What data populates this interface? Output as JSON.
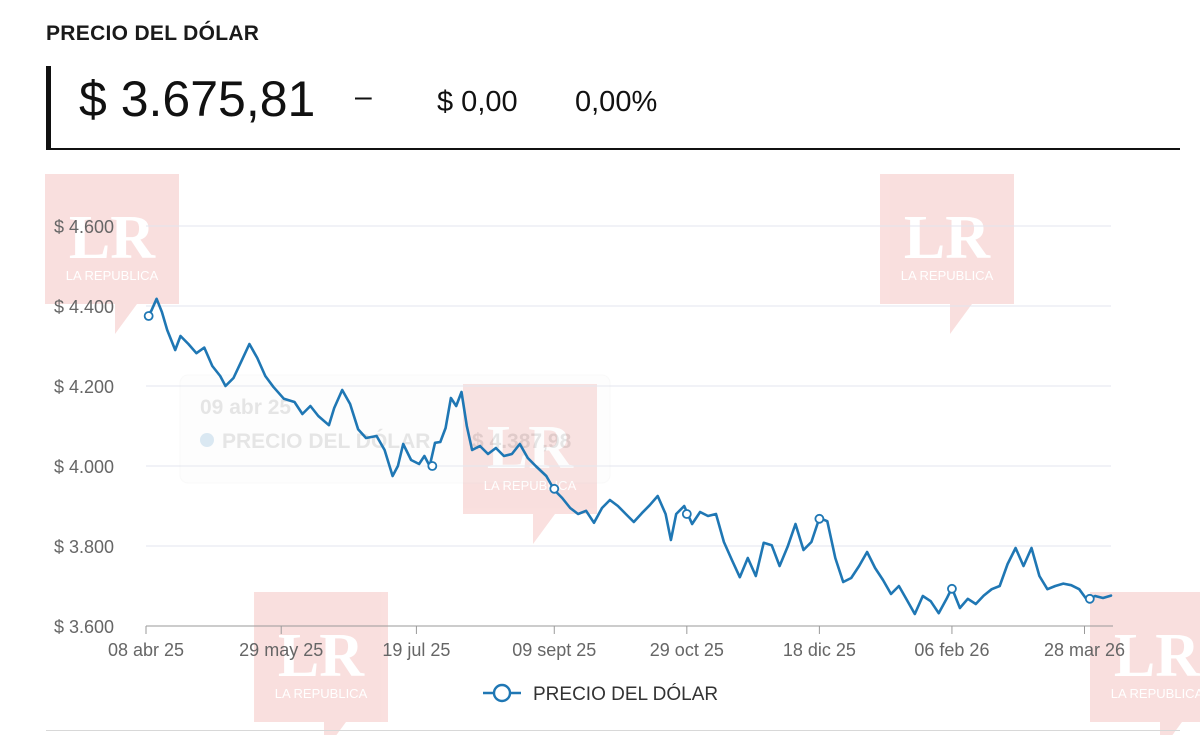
{
  "header": {
    "section_title": "PRECIO DEL DÓLAR",
    "price": "$ 3.675,81",
    "dash": "–",
    "change": "$ 0,00",
    "change_pct": "0,00%"
  },
  "watermark": {
    "logo_text": "LR",
    "sub_text": "LA REPUBLICA"
  },
  "colors": {
    "series": "#1f77b4",
    "grid": "#e3e6ef",
    "axis_text": "#666666",
    "watermark": "#e0403a"
  },
  "chart_data": {
    "type": "line",
    "x_axis_type": "date",
    "xlim": [
      "2025-04-08",
      "2026-04-07"
    ],
    "ylim": [
      3600,
      4600
    ],
    "y_ticks": [
      3600,
      3800,
      4000,
      4200,
      4400,
      4600
    ],
    "y_tick_labels": [
      "$ 3.600",
      "$ 3.800",
      "$ 4.000",
      "$ 4.200",
      "$ 4.400",
      "$ 4.600"
    ],
    "x_ticks": [
      "2025-04-08",
      "2025-05-29",
      "2025-07-19",
      "2025-09-09",
      "2025-10-29",
      "2025-12-18",
      "2026-02-06",
      "2026-03-28"
    ],
    "x_tick_labels": [
      "08 abr 25",
      "29 may 25",
      "19 jul 25",
      "09 sept 25",
      "29 oct 25",
      "18 dic 25",
      "06 feb 26",
      "28 mar 26"
    ],
    "grid": true,
    "legend_position": "bottom-center",
    "tooltip": {
      "date": "09 abr 25",
      "series": "PRECIO DEL DÓLAR",
      "value": "$ 4.387,98"
    },
    "series": [
      {
        "name": "PRECIO DEL DÓLAR",
        "points": [
          [
            "2025-04-08",
            4372
          ],
          [
            "2025-04-10",
            4388
          ],
          [
            "2025-04-12",
            4418
          ],
          [
            "2025-04-14",
            4385
          ],
          [
            "2025-04-16",
            4340
          ],
          [
            "2025-04-19",
            4290
          ],
          [
            "2025-04-21",
            4325
          ],
          [
            "2025-04-24",
            4305
          ],
          [
            "2025-04-27",
            4282
          ],
          [
            "2025-04-30",
            4296
          ],
          [
            "2025-05-03",
            4250
          ],
          [
            "2025-05-06",
            4225
          ],
          [
            "2025-05-08",
            4200
          ],
          [
            "2025-05-11",
            4220
          ],
          [
            "2025-05-14",
            4262
          ],
          [
            "2025-05-17",
            4305
          ],
          [
            "2025-05-20",
            4270
          ],
          [
            "2025-05-23",
            4225
          ],
          [
            "2025-05-26",
            4198
          ],
          [
            "2025-05-30",
            4168
          ],
          [
            "2025-06-03",
            4160
          ],
          [
            "2025-06-06",
            4130
          ],
          [
            "2025-06-09",
            4150
          ],
          [
            "2025-06-12",
            4125
          ],
          [
            "2025-06-16",
            4102
          ],
          [
            "2025-06-18",
            4145
          ],
          [
            "2025-06-21",
            4190
          ],
          [
            "2025-06-24",
            4155
          ],
          [
            "2025-06-27",
            4092
          ],
          [
            "2025-06-30",
            4070
          ],
          [
            "2025-07-04",
            4075
          ],
          [
            "2025-07-07",
            4040
          ],
          [
            "2025-07-10",
            3975
          ],
          [
            "2025-07-12",
            4000
          ],
          [
            "2025-07-14",
            4055
          ],
          [
            "2025-07-17",
            4015
          ],
          [
            "2025-07-20",
            4005
          ],
          [
            "2025-07-22",
            4025
          ],
          [
            "2025-07-24",
            4000
          ],
          [
            "2025-07-26",
            4058
          ],
          [
            "2025-07-28",
            4060
          ],
          [
            "2025-07-30",
            4095
          ],
          [
            "2025-08-01",
            4170
          ],
          [
            "2025-08-03",
            4150
          ],
          [
            "2025-08-05",
            4185
          ],
          [
            "2025-08-07",
            4100
          ],
          [
            "2025-08-09",
            4040
          ],
          [
            "2025-08-12",
            4050
          ],
          [
            "2025-08-15",
            4030
          ],
          [
            "2025-08-18",
            4045
          ],
          [
            "2025-08-21",
            4025
          ],
          [
            "2025-08-24",
            4030
          ],
          [
            "2025-08-27",
            4055
          ],
          [
            "2025-08-30",
            4020
          ],
          [
            "2025-09-02",
            4000
          ],
          [
            "2025-09-06",
            3975
          ],
          [
            "2025-09-09",
            3940
          ],
          [
            "2025-09-12",
            3920
          ],
          [
            "2025-09-15",
            3895
          ],
          [
            "2025-09-18",
            3880
          ],
          [
            "2025-09-21",
            3888
          ],
          [
            "2025-09-24",
            3858
          ],
          [
            "2025-09-27",
            3895
          ],
          [
            "2025-09-30",
            3915
          ],
          [
            "2025-10-03",
            3900
          ],
          [
            "2025-10-06",
            3880
          ],
          [
            "2025-10-09",
            3860
          ],
          [
            "2025-10-12",
            3882
          ],
          [
            "2025-10-15",
            3902
          ],
          [
            "2025-10-18",
            3925
          ],
          [
            "2025-10-21",
            3880
          ],
          [
            "2025-10-23",
            3815
          ],
          [
            "2025-10-25",
            3880
          ],
          [
            "2025-10-28",
            3900
          ],
          [
            "2025-10-31",
            3855
          ],
          [
            "2025-11-03",
            3885
          ],
          [
            "2025-11-06",
            3875
          ],
          [
            "2025-11-09",
            3880
          ],
          [
            "2025-11-12",
            3810
          ],
          [
            "2025-11-15",
            3765
          ],
          [
            "2025-11-18",
            3722
          ],
          [
            "2025-11-21",
            3770
          ],
          [
            "2025-11-24",
            3725
          ],
          [
            "2025-11-27",
            3808
          ],
          [
            "2025-11-30",
            3802
          ],
          [
            "2025-12-03",
            3750
          ],
          [
            "2025-12-06",
            3798
          ],
          [
            "2025-12-09",
            3855
          ],
          [
            "2025-12-12",
            3790
          ],
          [
            "2025-12-15",
            3810
          ],
          [
            "2025-12-18",
            3870
          ],
          [
            "2025-12-21",
            3862
          ],
          [
            "2025-12-24",
            3770
          ],
          [
            "2025-12-27",
            3710
          ],
          [
            "2025-12-30",
            3720
          ],
          [
            "2026-01-02",
            3750
          ],
          [
            "2026-01-05",
            3785
          ],
          [
            "2026-01-08",
            3745
          ],
          [
            "2026-01-11",
            3715
          ],
          [
            "2026-01-14",
            3680
          ],
          [
            "2026-01-17",
            3700
          ],
          [
            "2026-01-20",
            3665
          ],
          [
            "2026-01-23",
            3630
          ],
          [
            "2026-01-26",
            3675
          ],
          [
            "2026-01-29",
            3662
          ],
          [
            "2026-02-01",
            3632
          ],
          [
            "2026-02-04",
            3668
          ],
          [
            "2026-02-06",
            3695
          ],
          [
            "2026-02-09",
            3645
          ],
          [
            "2026-02-12",
            3668
          ],
          [
            "2026-02-15",
            3655
          ],
          [
            "2026-02-18",
            3676
          ],
          [
            "2026-02-21",
            3692
          ],
          [
            "2026-02-24",
            3700
          ],
          [
            "2026-02-27",
            3755
          ],
          [
            "2026-03-02",
            3795
          ],
          [
            "2026-03-05",
            3750
          ],
          [
            "2026-03-08",
            3795
          ],
          [
            "2026-03-11",
            3725
          ],
          [
            "2026-03-14",
            3692
          ],
          [
            "2026-03-17",
            3700
          ],
          [
            "2026-03-20",
            3706
          ],
          [
            "2026-03-23",
            3702
          ],
          [
            "2026-03-26",
            3692
          ],
          [
            "2026-03-29",
            3665
          ],
          [
            "2026-04-01",
            3675
          ],
          [
            "2026-04-04",
            3670
          ],
          [
            "2026-04-07",
            3676
          ]
        ],
        "markers": [
          [
            "2025-04-09",
            4375
          ],
          [
            "2025-07-25",
            4000
          ],
          [
            "2025-09-09",
            3943
          ],
          [
            "2025-10-29",
            3880
          ],
          [
            "2025-12-18",
            3868
          ],
          [
            "2026-02-06",
            3693
          ],
          [
            "2026-03-30",
            3668
          ]
        ]
      }
    ]
  }
}
